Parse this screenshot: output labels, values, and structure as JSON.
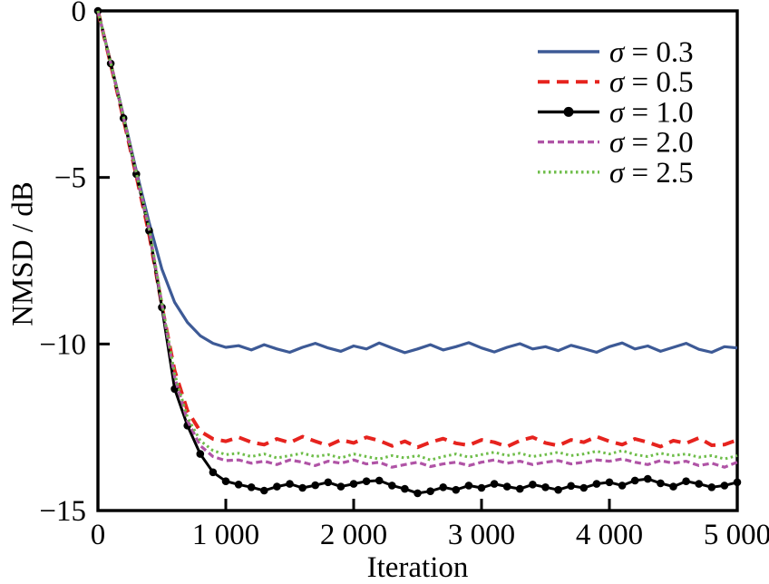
{
  "figure": {
    "background": "#ffffff",
    "text_color": "#000000",
    "axis_color": "#000000"
  },
  "chart_data": {
    "type": "line",
    "title": "",
    "xlabel": "Iteration",
    "ylabel": "NMSD / dB",
    "xlim": [
      0,
      5000
    ],
    "ylim": [
      -15,
      0
    ],
    "grid": false,
    "legend_position": "top-right",
    "legend_frame": false,
    "x_ticks": [
      {
        "value": 0,
        "label": "0"
      },
      {
        "value": 1000,
        "label": "1 000"
      },
      {
        "value": 2000,
        "label": "2 000"
      },
      {
        "value": 3000,
        "label": "3 000"
      },
      {
        "value": 4000,
        "label": "4 000"
      },
      {
        "value": 5000,
        "label": "5 000"
      }
    ],
    "y_ticks": [
      {
        "value": 0,
        "label": "0"
      },
      {
        "value": -5,
        "label": "−5"
      },
      {
        "value": -10,
        "label": "−10"
      },
      {
        "value": -15,
        "label": "−15"
      }
    ],
    "x": [
      0,
      100,
      200,
      300,
      400,
      500,
      600,
      700,
      800,
      900,
      1000,
      1100,
      1200,
      1300,
      1400,
      1500,
      1600,
      1700,
      1800,
      1900,
      2000,
      2100,
      2200,
      2300,
      2400,
      2500,
      2600,
      2700,
      2800,
      2900,
      3000,
      3100,
      3200,
      3300,
      3400,
      3500,
      3600,
      3700,
      3800,
      3900,
      4000,
      4100,
      4200,
      4300,
      4400,
      4500,
      4600,
      4700,
      4800,
      4900,
      5000
    ],
    "series": [
      {
        "name": "sigma-0.3",
        "label": "σ = 0.3",
        "label_symbol": "σ",
        "label_rest": "= 0.3",
        "color": "#3d5a96",
        "style": "solid",
        "dash": null,
        "width": 3.2,
        "marker": "none",
        "values": [
          0,
          -1.55,
          -3.15,
          -4.8,
          -6.35,
          -7.75,
          -8.75,
          -9.35,
          -9.75,
          -9.98,
          -10.1,
          -10.05,
          -10.18,
          -10.02,
          -10.15,
          -10.25,
          -10.1,
          -9.98,
          -10.12,
          -10.22,
          -10.06,
          -10.15,
          -9.97,
          -10.12,
          -10.26,
          -10.15,
          -10.02,
          -10.18,
          -10.08,
          -9.96,
          -10.12,
          -10.24,
          -10.1,
          -9.99,
          -10.15,
          -10.08,
          -10.2,
          -10.04,
          -10.14,
          -10.25,
          -10.08,
          -9.97,
          -10.15,
          -10.06,
          -10.22,
          -10.1,
          -9.98,
          -10.16,
          -10.25,
          -10.08,
          -10.12
        ]
      },
      {
        "name": "sigma-0.5",
        "label": "σ = 0.5",
        "label_symbol": "σ",
        "label_rest": "= 0.5",
        "color": "#e6231e",
        "style": "dashed",
        "dash": [
          13,
          8
        ],
        "width": 4,
        "marker": "none",
        "values": [
          0,
          -1.6,
          -3.25,
          -4.95,
          -6.7,
          -8.85,
          -10.8,
          -12.0,
          -12.62,
          -12.85,
          -12.92,
          -12.8,
          -12.95,
          -13.02,
          -12.85,
          -12.96,
          -12.78,
          -12.92,
          -13.05,
          -12.88,
          -12.97,
          -12.8,
          -12.9,
          -13.06,
          -12.92,
          -13.1,
          -12.95,
          -12.84,
          -12.98,
          -13.04,
          -12.88,
          -12.95,
          -13.08,
          -12.9,
          -12.8,
          -12.97,
          -13.05,
          -12.88,
          -12.95,
          -12.78,
          -12.92,
          -13.02,
          -12.85,
          -12.95,
          -13.08,
          -12.9,
          -12.98,
          -12.82,
          -13.04,
          -13.02,
          -12.88
        ]
      },
      {
        "name": "sigma-1.0",
        "label": "σ = 1.0",
        "label_symbol": "σ",
        "label_rest": "= 1.0",
        "color": "#000000",
        "style": "solid",
        "dash": null,
        "width": 3,
        "marker": "circle",
        "marker_radius": 4.3,
        "values": [
          0,
          -1.58,
          -3.22,
          -4.9,
          -6.6,
          -8.9,
          -11.35,
          -12.45,
          -13.3,
          -13.85,
          -14.12,
          -14.22,
          -14.3,
          -14.4,
          -14.28,
          -14.2,
          -14.32,
          -14.24,
          -14.15,
          -14.28,
          -14.2,
          -14.12,
          -14.1,
          -14.25,
          -14.35,
          -14.48,
          -14.42,
          -14.3,
          -14.38,
          -14.25,
          -14.32,
          -14.2,
          -14.28,
          -14.35,
          -14.22,
          -14.3,
          -14.38,
          -14.26,
          -14.32,
          -14.2,
          -14.15,
          -14.25,
          -14.1,
          -14.05,
          -14.18,
          -14.28,
          -14.12,
          -14.2,
          -14.3,
          -14.25,
          -14.15
        ]
      },
      {
        "name": "sigma-2.0",
        "label": "σ = 2.0",
        "label_symbol": "σ",
        "label_rest": "= 2.0",
        "color": "#b054a6",
        "style": "dashed",
        "dash": [
          7,
          4
        ],
        "width": 3.2,
        "marker": "none",
        "values": [
          0,
          -1.57,
          -3.2,
          -4.88,
          -6.55,
          -8.8,
          -11.0,
          -12.3,
          -13.05,
          -13.38,
          -13.5,
          -13.48,
          -13.58,
          -13.52,
          -13.62,
          -13.48,
          -13.55,
          -13.65,
          -13.52,
          -13.58,
          -13.48,
          -13.6,
          -13.55,
          -13.7,
          -13.62,
          -13.55,
          -13.68,
          -13.6,
          -13.55,
          -13.65,
          -13.55,
          -13.48,
          -13.58,
          -13.52,
          -13.62,
          -13.55,
          -13.5,
          -13.6,
          -13.55,
          -13.48,
          -13.52,
          -13.45,
          -13.55,
          -13.62,
          -13.5,
          -13.58,
          -13.52,
          -13.65,
          -13.58,
          -13.7,
          -13.55
        ]
      },
      {
        "name": "sigma-2.5",
        "label": "σ = 2.5",
        "label_symbol": "σ",
        "label_rest": "= 2.5",
        "color": "#6ebd49",
        "style": "dotted",
        "dash": [
          2.5,
          3.5
        ],
        "width": 3,
        "marker": "none",
        "values": [
          0,
          -1.56,
          -3.18,
          -4.85,
          -6.5,
          -8.75,
          -10.9,
          -12.2,
          -12.9,
          -13.2,
          -13.32,
          -13.28,
          -13.38,
          -13.3,
          -13.42,
          -13.35,
          -13.28,
          -13.38,
          -13.32,
          -13.42,
          -13.3,
          -13.38,
          -13.45,
          -13.35,
          -13.42,
          -13.35,
          -13.48,
          -13.38,
          -13.3,
          -13.4,
          -13.32,
          -13.25,
          -13.35,
          -13.28,
          -13.38,
          -13.32,
          -13.25,
          -13.35,
          -13.3,
          -13.22,
          -13.3,
          -13.2,
          -13.32,
          -13.38,
          -13.28,
          -13.35,
          -13.3,
          -13.4,
          -13.35,
          -13.45,
          -13.35
        ]
      }
    ]
  }
}
